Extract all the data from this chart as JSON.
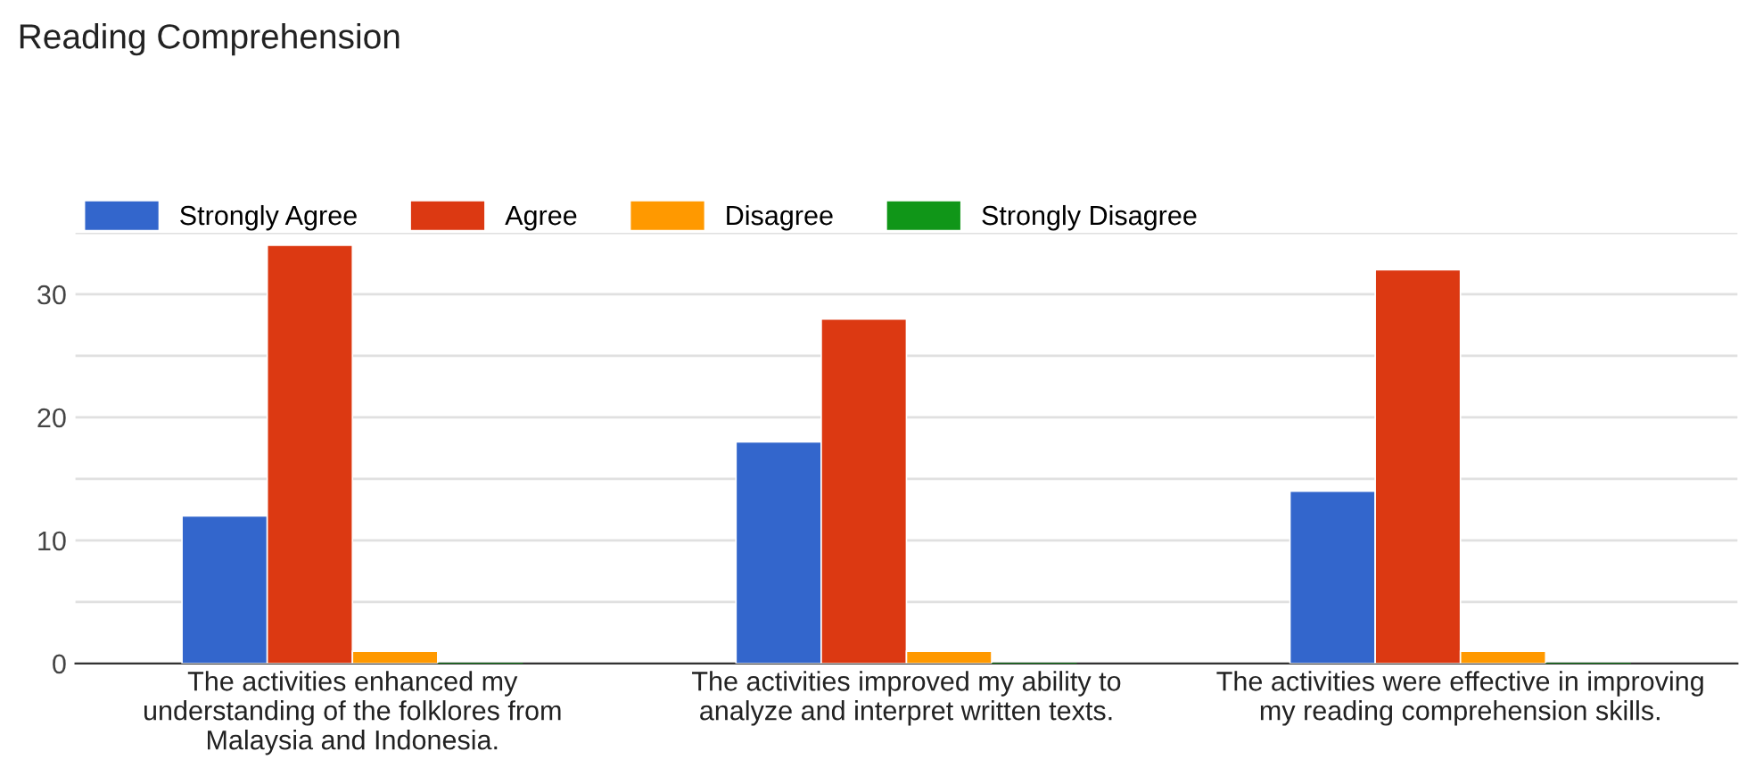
{
  "chart_data": {
    "type": "bar",
    "title": "Reading Comprehension",
    "categories": [
      "The activities enhanced my\nunderstanding of the folklores from\nMalaysia and Indonesia.",
      "The activities improved my ability to\nanalyze and interpret written texts.",
      "The activities were effective in improving\nmy reading comprehension skills."
    ],
    "series": [
      {
        "name": "Strongly Agree",
        "color": "#3366cc",
        "values": [
          12,
          18,
          14
        ]
      },
      {
        "name": "Agree",
        "color": "#dc3912",
        "values": [
          34,
          28,
          32
        ]
      },
      {
        "name": "Disagree",
        "color": "#ff9900",
        "values": [
          1,
          1,
          1
        ]
      },
      {
        "name": "Strongly Disagree",
        "color": "#109618",
        "values": [
          0,
          0,
          0
        ]
      }
    ],
    "ylim": [
      0,
      35
    ],
    "yticks": [
      0,
      {
        "value": 5,
        "label": null
      },
      10,
      {
        "value": 15,
        "label": null
      },
      20,
      {
        "value": 25,
        "label": null
      },
      30,
      {
        "value": 35,
        "label": null
      }
    ],
    "grid": "y",
    "legend": "top left"
  }
}
